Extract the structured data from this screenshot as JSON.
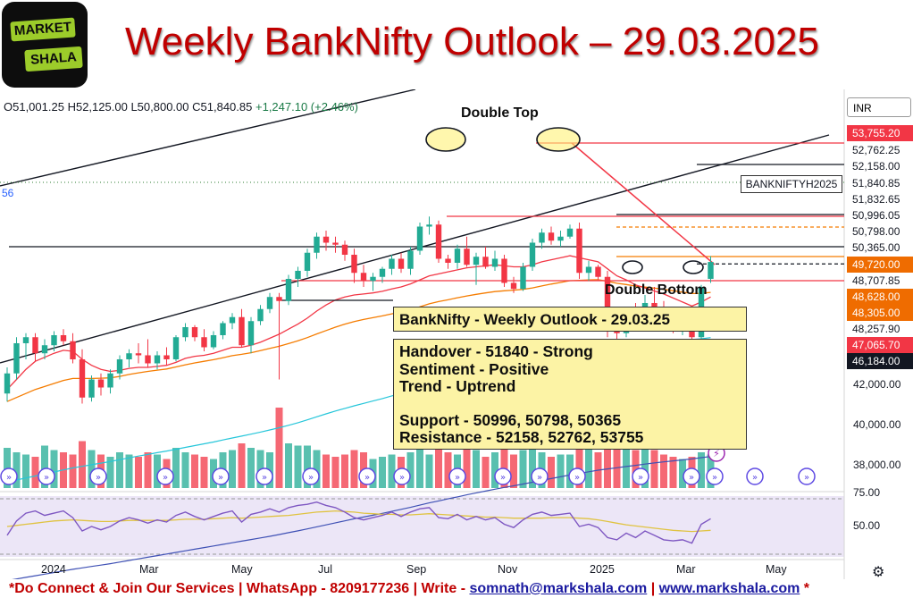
{
  "header": {
    "title": "Weekly BankNifty Outlook – 29.03.2025",
    "logo_top": "MARKET",
    "logo_bottom": "SHALA"
  },
  "ohlc": {
    "open": "O51,001.25",
    "high": "H52,125.00",
    "low": "L50,800.00",
    "close": "C51,840.85",
    "change": "+1,247.10 (+2.46%)"
  },
  "currency": "INR",
  "side_marker": "56",
  "symbol_tag": "BANKNIFTYH2025",
  "annotations": {
    "double_top": "Double Top",
    "double_bottom": "Double Bottom"
  },
  "outlook_title": "BankNifty - Weekly Outlook - 29.03.25",
  "outlook_lines": [
    "Handover - 51840 - Strong",
    "Sentiment - Positive",
    "Trend - Uptrend",
    "Support - 50996, 50798, 50365",
    "Resistance - 52158, 52762, 53755"
  ],
  "price_labels": [
    {
      "text": "53,755.20",
      "bg": "#f23645",
      "fg": "#ffffff"
    },
    {
      "text": "52,762.25",
      "bg": "#ffffff",
      "fg": "#131722"
    },
    {
      "text": "52,158.00",
      "bg": "#ffffff",
      "fg": "#131722"
    },
    {
      "text": "51,840.85",
      "bg": "#ffffff",
      "fg": "#131722"
    },
    {
      "text": "51,832.65",
      "bg": "#ffffff",
      "fg": "#131722"
    },
    {
      "text": "50,996.05",
      "bg": "#ffffff",
      "fg": "#131722"
    },
    {
      "text": "50,798.00",
      "bg": "#ffffff",
      "fg": "#131722"
    },
    {
      "text": "50,365.00",
      "bg": "#ffffff",
      "fg": "#131722"
    },
    {
      "text": "49,720.00",
      "bg": "#ef6c00",
      "fg": "#ffffff"
    },
    {
      "text": "48,707.85",
      "bg": "#ffffff",
      "fg": "#131722"
    },
    {
      "text": "48,628.00",
      "bg": "#ef6c00",
      "fg": "#ffffff"
    },
    {
      "text": "48,305.00",
      "bg": "#ef6c00",
      "fg": "#ffffff"
    },
    {
      "text": "48,257.90",
      "bg": "#ffffff",
      "fg": "#131722"
    },
    {
      "text": "47,065.70",
      "bg": "#f23645",
      "fg": "#ffffff"
    },
    {
      "text": "46,184.00",
      "bg": "#131722",
      "fg": "#ffffff"
    }
  ],
  "price_axis": [
    "42,000.00",
    "40,000.00",
    "38,000.00"
  ],
  "rsi_axis": [
    "75.00",
    "50.00"
  ],
  "x_axis": [
    "2024",
    "Mar",
    "May",
    "Jul",
    "Sep",
    "Nov",
    "2025",
    "Mar",
    "May"
  ],
  "footer": {
    "prefix": "*Do Connect & Join Our Services | WhatsApp - 8209177236 | Write - ",
    "email": "somnath@markshala.com",
    "sep": " | ",
    "website": "www.markshala.com",
    "suffix": " *"
  },
  "colors": {
    "up": "#22ab94",
    "down": "#f23645",
    "ema_short": "#f23645",
    "ema_mid": "#f57c00",
    "ema_long": "#26c6da",
    "ema_200": "#3f51b5",
    "rsi": "#7e57c2",
    "rsi_ma": "#e0c341"
  },
  "chart_data": {
    "type": "candlestick",
    "title": "Weekly BankNifty Outlook – 29.03.2025",
    "timeframe": "weekly",
    "x_ticks": [
      "2024",
      "Mar",
      "May",
      "Jul",
      "Sep",
      "Nov",
      "2025",
      "Mar",
      "May"
    ],
    "y_ticks": [
      42000,
      40000,
      38000
    ],
    "ylim": [
      38000,
      56000
    ],
    "latest": {
      "open": 51001.25,
      "high": 52125.0,
      "low": 50800.0,
      "close": 51840.85,
      "change": 1247.1,
      "change_pct": 2.46
    },
    "levels": {
      "support": [
        50996,
        50798,
        50365
      ],
      "resistance": [
        52158,
        52762,
        53755
      ],
      "marked": [
        53755.2,
        52762.25,
        52158.0,
        51840.85,
        51832.65,
        50996.05,
        50798.0,
        50365.0,
        49720.0,
        48707.85,
        48628.0,
        48305.0,
        48257.9,
        47065.7,
        46184.0
      ]
    },
    "candles": [
      {
        "o": 45300,
        "h": 46600,
        "l": 44900,
        "c": 46300
      },
      {
        "o": 46300,
        "h": 48100,
        "l": 46000,
        "c": 47800
      },
      {
        "o": 47800,
        "h": 48300,
        "l": 47000,
        "c": 48100
      },
      {
        "o": 48100,
        "h": 48300,
        "l": 46900,
        "c": 47300
      },
      {
        "o": 47300,
        "h": 48000,
        "l": 47000,
        "c": 47700
      },
      {
        "o": 47700,
        "h": 48400,
        "l": 47400,
        "c": 48200
      },
      {
        "o": 48200,
        "h": 48500,
        "l": 47700,
        "c": 47900
      },
      {
        "o": 47900,
        "h": 48300,
        "l": 46800,
        "c": 47000
      },
      {
        "o": 47000,
        "h": 47500,
        "l": 44800,
        "c": 45100
      },
      {
        "o": 45100,
        "h": 46200,
        "l": 44900,
        "c": 46000
      },
      {
        "o": 46000,
        "h": 46300,
        "l": 45200,
        "c": 45600
      },
      {
        "o": 45600,
        "h": 46500,
        "l": 45300,
        "c": 46300
      },
      {
        "o": 46300,
        "h": 47200,
        "l": 46000,
        "c": 47000
      },
      {
        "o": 47000,
        "h": 47500,
        "l": 46600,
        "c": 47300
      },
      {
        "o": 47300,
        "h": 47800,
        "l": 46800,
        "c": 47200
      },
      {
        "o": 47200,
        "h": 48000,
        "l": 46600,
        "c": 46800
      },
      {
        "o": 46800,
        "h": 47400,
        "l": 46500,
        "c": 47200
      },
      {
        "o": 47200,
        "h": 47600,
        "l": 46700,
        "c": 47000
      },
      {
        "o": 47000,
        "h": 48200,
        "l": 46900,
        "c": 48100
      },
      {
        "o": 48100,
        "h": 48800,
        "l": 47900,
        "c": 48600
      },
      {
        "o": 48600,
        "h": 48700,
        "l": 47900,
        "c": 48100
      },
      {
        "o": 48100,
        "h": 48500,
        "l": 47400,
        "c": 47600
      },
      {
        "o": 47600,
        "h": 48400,
        "l": 47500,
        "c": 48200
      },
      {
        "o": 48200,
        "h": 48900,
        "l": 48000,
        "c": 48800
      },
      {
        "o": 48800,
        "h": 49300,
        "l": 48500,
        "c": 49100
      },
      {
        "o": 49100,
        "h": 49500,
        "l": 47600,
        "c": 47700
      },
      {
        "o": 47700,
        "h": 49100,
        "l": 47300,
        "c": 48900
      },
      {
        "o": 48900,
        "h": 49700,
        "l": 48700,
        "c": 49500
      },
      {
        "o": 49500,
        "h": 50300,
        "l": 49300,
        "c": 50100
      },
      {
        "o": 50100,
        "h": 50300,
        "l": 46000,
        "c": 49900
      },
      {
        "o": 49900,
        "h": 51200,
        "l": 49700,
        "c": 51000
      },
      {
        "o": 51000,
        "h": 51600,
        "l": 50600,
        "c": 51400
      },
      {
        "o": 51400,
        "h": 52500,
        "l": 51100,
        "c": 52300
      },
      {
        "o": 52300,
        "h": 53300,
        "l": 52000,
        "c": 53100
      },
      {
        "o": 53100,
        "h": 53400,
        "l": 52400,
        "c": 52800
      },
      {
        "o": 52800,
        "h": 53100,
        "l": 52300,
        "c": 52700
      },
      {
        "o": 52700,
        "h": 52900,
        "l": 51900,
        "c": 52200
      },
      {
        "o": 52200,
        "h": 52500,
        "l": 50800,
        "c": 51300
      },
      {
        "o": 51300,
        "h": 51700,
        "l": 50600,
        "c": 50900
      },
      {
        "o": 50900,
        "h": 51300,
        "l": 50400,
        "c": 51100
      },
      {
        "o": 51100,
        "h": 51600,
        "l": 50800,
        "c": 51500
      },
      {
        "o": 51500,
        "h": 52200,
        "l": 51200,
        "c": 52000
      },
      {
        "o": 52000,
        "h": 52300,
        "l": 51300,
        "c": 51500
      },
      {
        "o": 51500,
        "h": 52600,
        "l": 51200,
        "c": 52400
      },
      {
        "o": 52400,
        "h": 53800,
        "l": 52200,
        "c": 53600
      },
      {
        "o": 53600,
        "h": 54100,
        "l": 53200,
        "c": 53700
      },
      {
        "o": 53700,
        "h": 53900,
        "l": 51800,
        "c": 52000
      },
      {
        "o": 52000,
        "h": 52200,
        "l": 51500,
        "c": 51800
      },
      {
        "o": 51800,
        "h": 52700,
        "l": 51500,
        "c": 52500
      },
      {
        "o": 52500,
        "h": 53100,
        "l": 51600,
        "c": 51700
      },
      {
        "o": 51700,
        "h": 52300,
        "l": 50700,
        "c": 52100
      },
      {
        "o": 52100,
        "h": 52600,
        "l": 51500,
        "c": 51600
      },
      {
        "o": 51600,
        "h": 52400,
        "l": 51400,
        "c": 52000
      },
      {
        "o": 52000,
        "h": 52200,
        "l": 50600,
        "c": 50800
      },
      {
        "o": 50800,
        "h": 51100,
        "l": 50300,
        "c": 50500
      },
      {
        "o": 50500,
        "h": 51800,
        "l": 50400,
        "c": 51600
      },
      {
        "o": 51600,
        "h": 53000,
        "l": 51400,
        "c": 52800
      },
      {
        "o": 52800,
        "h": 53500,
        "l": 52500,
        "c": 53300
      },
      {
        "o": 53300,
        "h": 53600,
        "l": 52700,
        "c": 52900
      },
      {
        "o": 52900,
        "h": 53400,
        "l": 52600,
        "c": 53100
      },
      {
        "o": 53100,
        "h": 53700,
        "l": 53000,
        "c": 53500
      },
      {
        "o": 53500,
        "h": 53800,
        "l": 51000,
        "c": 51300
      },
      {
        "o": 51300,
        "h": 51900,
        "l": 50900,
        "c": 51600
      },
      {
        "o": 51600,
        "h": 51700,
        "l": 50900,
        "c": 51100
      },
      {
        "o": 51100,
        "h": 51400,
        "l": 48100,
        "c": 48700
      },
      {
        "o": 48700,
        "h": 49100,
        "l": 47900,
        "c": 48300
      },
      {
        "o": 48300,
        "h": 49600,
        "l": 48100,
        "c": 49400
      },
      {
        "o": 49400,
        "h": 49800,
        "l": 48500,
        "c": 48600
      },
      {
        "o": 48600,
        "h": 50200,
        "l": 48400,
        "c": 49800
      },
      {
        "o": 49800,
        "h": 50600,
        "l": 49100,
        "c": 49300
      },
      {
        "o": 49300,
        "h": 49900,
        "l": 48400,
        "c": 48700
      },
      {
        "o": 48700,
        "h": 49100,
        "l": 48300,
        "c": 48500
      },
      {
        "o": 48500,
        "h": 48900,
        "l": 48200,
        "c": 48600
      },
      {
        "o": 48600,
        "h": 48800,
        "l": 47800,
        "c": 48100
      },
      {
        "o": 48100,
        "h": 50700,
        "l": 48000,
        "c": 50600
      },
      {
        "o": 51001.25,
        "h": 52125.0,
        "l": 50800.0,
        "c": 51840.85
      }
    ],
    "ema_short": [
      45500,
      46000,
      46500,
      46900,
      47100,
      47300,
      47450,
      47400,
      47000,
      46700,
      46500,
      46400,
      46450,
      46550,
      46600,
      46600,
      46650,
      46700,
      46850,
      47050,
      47150,
      47200,
      47300,
      47450,
      47600,
      47600,
      47700,
      47850,
      48050,
      48250,
      48500,
      48750,
      49050,
      49400,
      49700,
      49950,
      50100,
      50200,
      50250,
      50300,
      50380,
      50500,
      50600,
      50750,
      50950,
      51150,
      51250,
      51350,
      51450,
      51550,
      51600,
      51650,
      51700,
      51650,
      51600,
      51600,
      51700,
      51850,
      51950,
      52050,
      52150,
      52050,
      51950,
      51850,
      51500,
      51150,
      50950,
      50700,
      50550,
      50400,
      50250,
      50050,
      49850,
      49650,
      49850,
      50100
    ],
    "ema_mid": [
      44900,
      45100,
      45300,
      45500,
      45650,
      45800,
      45950,
      46050,
      46050,
      46050,
      46060,
      46080,
      46150,
      46250,
      46330,
      46400,
      46460,
      46520,
      46620,
      46730,
      46820,
      46900,
      46980,
      47080,
      47180,
      47250,
      47330,
      47430,
      47540,
      47650,
      47780,
      47920,
      48080,
      48260,
      48430,
      48600,
      48750,
      48880,
      48980,
      49070,
      49160,
      49260,
      49360,
      49470,
      49610,
      49760,
      49870,
      49960,
      50060,
      50150,
      50230,
      50300,
      50370,
      50410,
      50440,
      50480,
      50550,
      50650,
      50740,
      50820,
      50910,
      50930,
      50950,
      50960,
      50880,
      50780,
      50720,
      50640,
      50590,
      50540,
      50480,
      50410,
      50340,
      50270,
      50280,
      50330
    ],
    "ema_long": [
      40900,
      41000,
      41100,
      41200,
      41300,
      41400,
      41500,
      41600,
      41680,
      41760,
      41840,
      41920,
      42010,
      42100,
      42190,
      42270,
      42360,
      42440,
      42530,
      42620,
      42710,
      42800,
      42890,
      42990,
      43090,
      43180,
      43280,
      43380,
      43490,
      43600,
      43720,
      43850,
      43990,
      44140,
      44290,
      44430,
      44560,
      44690,
      44810,
      44930,
      45050,
      45180,
      45300,
      45430,
      45570,
      45720,
      45850,
      45970,
      46100,
      46220,
      46340,
      46450,
      46560,
      46660,
      46750,
      46850,
      46960,
      47080,
      47200,
      47320,
      47440,
      47530,
      47620,
      47700,
      47740,
      47770,
      47820,
      47850,
      47890,
      47920,
      47940,
      47960,
      47970,
      47980,
      48020,
      48080
    ],
    "ema_200": [
      36000,
      36080,
      36160,
      36240,
      36320,
      36400,
      36480,
      36560,
      36630,
      36700,
      36770,
      36840,
      36920,
      37000,
      37080,
      37160,
      37240,
      37320,
      37400,
      37480,
      37560,
      37640,
      37720,
      37800,
      37880,
      37960,
      38040,
      38120,
      38200,
      38290,
      38380,
      38470,
      38570,
      38670,
      38770,
      38870,
      38970,
      39070,
      39160,
      39250,
      39340,
      39440,
      39540,
      39640,
      39750,
      39860,
      39960,
      40060,
      40160,
      40260,
      40360,
      40450,
      40540,
      40630,
      40710,
      40800,
      40890,
      40980,
      41070,
      41160,
      41250,
      41330,
      41410,
      41490,
      41550,
      41610,
      41670,
      41730,
      41790,
      41850,
      41900,
      41950,
      42000,
      42050,
      42110,
      42170
    ],
    "rsi": [
      42,
      55,
      62,
      64,
      60,
      62,
      64,
      58,
      46,
      50,
      47,
      50,
      55,
      58,
      56,
      53,
      56,
      54,
      60,
      63,
      59,
      56,
      59,
      62,
      64,
      54,
      61,
      63,
      66,
      63,
      67,
      69,
      70,
      72,
      69,
      67,
      63,
      58,
      56,
      58,
      60,
      63,
      59,
      63,
      66,
      67,
      58,
      57,
      61,
      56,
      59,
      56,
      58,
      52,
      49,
      56,
      61,
      63,
      60,
      61,
      62,
      50,
      52,
      49,
      40,
      38,
      44,
      40,
      46,
      42,
      38,
      37,
      38,
      35,
      52,
      57
    ],
    "rsi_ma": [
      50,
      51,
      52,
      53,
      54,
      55,
      55.5,
      56,
      55.5,
      55,
      54.5,
      54.5,
      55,
      55.5,
      55.5,
      55.5,
      55.5,
      55.5,
      56,
      56.5,
      56.5,
      56.5,
      57,
      57.5,
      58,
      57.5,
      58,
      58.5,
      59,
      59.5,
      60,
      61,
      62,
      63,
      63.5,
      64,
      63.5,
      63,
      62,
      61.5,
      61,
      61,
      60.5,
      60.5,
      61,
      61.5,
      61,
      60.5,
      60,
      59.5,
      59,
      58.5,
      58.5,
      58,
      57.5,
      57.5,
      57.5,
      57.5,
      58,
      58,
      58,
      57.5,
      57,
      56,
      54.5,
      53,
      51.5,
      50.5,
      49.5,
      48.5,
      47.5,
      46.5,
      46,
      45.5,
      46,
      46.5
    ],
    "volume": [
      1.8,
      1.6,
      1.5,
      1.4,
      1.9,
      1.7,
      1.6,
      1.5,
      2.1,
      1.7,
      1.5,
      1.4,
      1.6,
      1.5,
      1.4,
      1.6,
      1.5,
      1.3,
      1.8,
      1.6,
      1.5,
      1.4,
      1.3,
      1.6,
      1.7,
      2.0,
      1.8,
      1.7,
      1.6,
      3.6,
      2.0,
      1.9,
      1.9,
      1.7,
      1.5,
      1.4,
      1.5,
      1.7,
      1.6,
      1.3,
      1.4,
      1.5,
      1.4,
      1.6,
      1.8,
      1.5,
      2.0,
      1.6,
      1.5,
      1.9,
      1.7,
      1.4,
      1.6,
      1.8,
      1.5,
      1.7,
      1.8,
      1.6,
      1.4,
      1.5,
      1.5,
      2.0,
      1.8,
      1.6,
      1.9,
      2.0,
      1.9,
      1.7,
      1.8,
      1.7,
      1.5,
      1.4,
      1.3,
      1.4,
      1.6,
      1.5
    ],
    "double_top_level": 53755.2,
    "double_bottom_level": 49720.0
  }
}
